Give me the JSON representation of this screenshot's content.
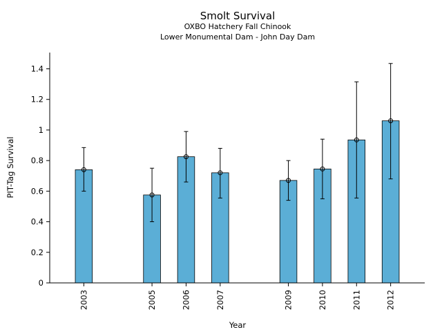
{
  "chart_data": {
    "type": "bar",
    "title": "Smolt Survival",
    "subtitle_lines": [
      "OXBO Hatchery Fall Chinook",
      "Lower Monumental Dam - John Day Dam"
    ],
    "xlabel": "Year",
    "ylabel": "PIT-Tag Survival",
    "x_range": [
      2002,
      2013
    ],
    "ylim": [
      0,
      1.5
    ],
    "y_ticks": [
      {
        "value": 0,
        "label": "0"
      },
      {
        "value": 0.2,
        "label": "0.2"
      },
      {
        "value": 0.4,
        "label": "0.4"
      },
      {
        "value": 0.6,
        "label": "0.6"
      },
      {
        "value": 0.8,
        "label": "0.8"
      },
      {
        "value": 1.0,
        "label": "1"
      },
      {
        "value": 1.2,
        "label": "1.2"
      },
      {
        "value": 1.4,
        "label": "1.4"
      }
    ],
    "categories": [
      "2003",
      "2005",
      "2006",
      "2007",
      "2009",
      "2010",
      "2011",
      "2012"
    ],
    "values": [
      0.74,
      0.575,
      0.825,
      0.72,
      0.67,
      0.745,
      0.935,
      1.06
    ],
    "error_low": [
      0.6,
      0.4,
      0.66,
      0.555,
      0.54,
      0.55,
      0.555,
      0.68
    ],
    "error_high": [
      0.885,
      0.75,
      0.99,
      0.88,
      0.8,
      0.94,
      1.315,
      1.435
    ],
    "bar_color": "#5BAED6",
    "grid": false,
    "legend": "none"
  }
}
